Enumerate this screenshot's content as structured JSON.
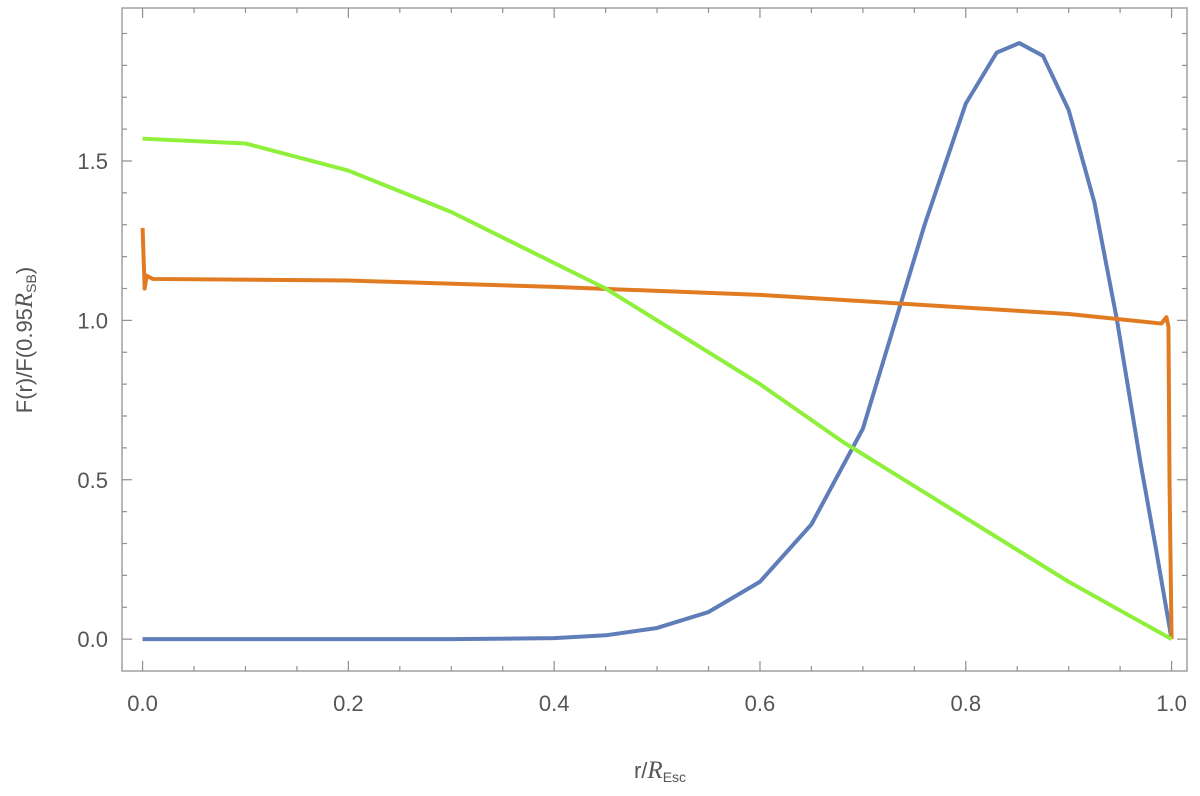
{
  "chart_data": {
    "type": "line",
    "xlabel": {
      "main": "r/",
      "symbol": "R",
      "subscript": "Esc"
    },
    "ylabel": {
      "main": "F(r)/F(0.95",
      "symbol": "R",
      "subscript": "SB",
      "close": ")"
    },
    "xlim": [
      -0.02,
      1.015
    ],
    "ylim": [
      -0.1,
      1.98
    ],
    "xticks": [
      {
        "value": 0,
        "label": "0.0"
      },
      0.2,
      0.4,
      0.6,
      0.8,
      {
        "value": 1,
        "label": "1.0"
      }
    ],
    "yticks": [
      {
        "value": 0,
        "label": "0.0"
      },
      0.5,
      {
        "value": 1,
        "label": "1.0"
      },
      1.5
    ],
    "xminorticks": [
      0.05,
      0.1,
      0.15,
      0.25,
      0.3,
      0.35,
      0.45,
      0.5,
      0.55,
      0.65,
      0.7,
      0.75,
      0.85,
      0.9,
      0.95
    ],
    "yminorticks": [
      0.1,
      0.2,
      0.3,
      0.4,
      0.6,
      0.7,
      0.8,
      0.9,
      1.1,
      1.2,
      1.3,
      1.4,
      1.6,
      1.7,
      1.8,
      1.9
    ],
    "series": [
      {
        "color": "#5f7db8",
        "x": [
          0,
          0.1,
          0.2,
          0.3,
          0.4,
          0.45,
          0.5,
          0.55,
          0.6,
          0.65,
          0.7,
          0.73,
          0.76,
          0.8,
          0.83,
          0.852,
          0.875,
          0.9,
          0.925,
          0.947,
          0.97,
          0.985,
          1.0
        ],
        "values": [
          0,
          0,
          0,
          0,
          0.003,
          0.012,
          0.035,
          0.085,
          0.18,
          0.36,
          0.66,
          0.98,
          1.3,
          1.68,
          1.84,
          1.87,
          1.83,
          1.66,
          1.37,
          1.0,
          0.55,
          0.28,
          0
        ]
      },
      {
        "color": "#e07b22",
        "x": [
          0,
          0.002,
          0.004,
          0.01,
          0.2,
          0.4,
          0.6,
          0.8,
          0.9,
          0.99,
          0.995,
          0.997,
          0.998,
          1.0
        ],
        "values": [
          1.29,
          1.1,
          1.14,
          1.13,
          1.125,
          1.105,
          1.08,
          1.04,
          1.02,
          0.99,
          1.01,
          0.98,
          0.5,
          0
        ]
      },
      {
        "color": "#8ff03c",
        "x": [
          0,
          0.1,
          0.2,
          0.3,
          0.4,
          0.45,
          0.5,
          0.6,
          0.68,
          0.8,
          0.9,
          1.0
        ],
        "values": [
          1.57,
          1.555,
          1.47,
          1.34,
          1.18,
          1.1,
          1.0,
          0.8,
          0.62,
          0.38,
          0.18,
          0
        ]
      }
    ]
  }
}
